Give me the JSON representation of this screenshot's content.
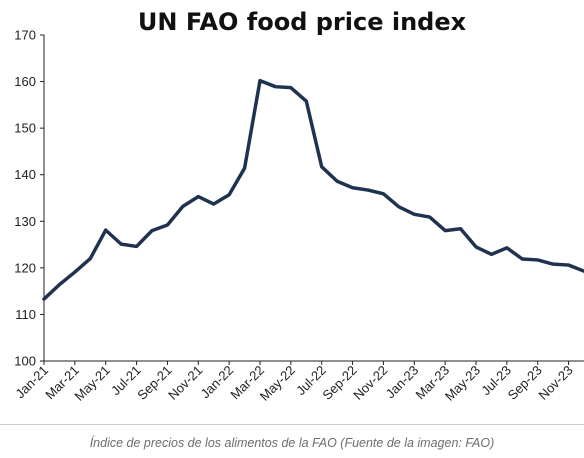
{
  "chart_data": {
    "type": "line",
    "title": "UN FAO food price index",
    "xlabel": "",
    "ylabel": "",
    "ylim": [
      100,
      170
    ],
    "yticks": [
      "100",
      "110",
      "120",
      "130",
      "140",
      "150",
      "160",
      "170"
    ],
    "grid": false,
    "legend": "none",
    "x_tick_labels": [
      "Jan-21",
      "Mar-21",
      "May-21",
      "Jul-21",
      "Sep-21",
      "Nov-21",
      "Jan-22",
      "Mar-22",
      "May-22",
      "Jul-22",
      "Sep-22",
      "Nov-22",
      "Jan-23",
      "Mar-23",
      "May-23",
      "Jul-23",
      "Sep-23",
      "Nov-23"
    ],
    "categories": [
      "Jan-21",
      "Feb-21",
      "Mar-21",
      "Apr-21",
      "May-21",
      "Jun-21",
      "Jul-21",
      "Aug-21",
      "Sep-21",
      "Oct-21",
      "Nov-21",
      "Dec-21",
      "Jan-22",
      "Feb-22",
      "Mar-22",
      "Apr-22",
      "May-22",
      "Jun-22",
      "Jul-22",
      "Aug-22",
      "Sep-22",
      "Oct-22",
      "Nov-22",
      "Dec-22",
      "Jan-23",
      "Feb-23",
      "Mar-23",
      "Apr-23",
      "May-23",
      "Jun-23",
      "Jul-23",
      "Aug-23",
      "Sep-23",
      "Oct-23",
      "Nov-23",
      "Dec-23"
    ],
    "series": [
      {
        "values": [
          113.3,
          116.4,
          119.1,
          122.0,
          128.1,
          125.1,
          124.6,
          128.0,
          129.2,
          133.2,
          135.3,
          133.7,
          135.7,
          141.4,
          160.2,
          158.9,
          158.7,
          155.8,
          141.7,
          138.6,
          137.2,
          136.7,
          135.9,
          133.1,
          131.5,
          130.9,
          128.0,
          128.4,
          124.5,
          122.9,
          124.3,
          121.9,
          121.7,
          120.8,
          120.6,
          119.3
        ],
        "color": "#1f3350"
      }
    ],
    "axis_color": "#222222"
  },
  "caption": "Índice de precios de los alimentos de la FAO (Fuente de la imagen: FAO)"
}
